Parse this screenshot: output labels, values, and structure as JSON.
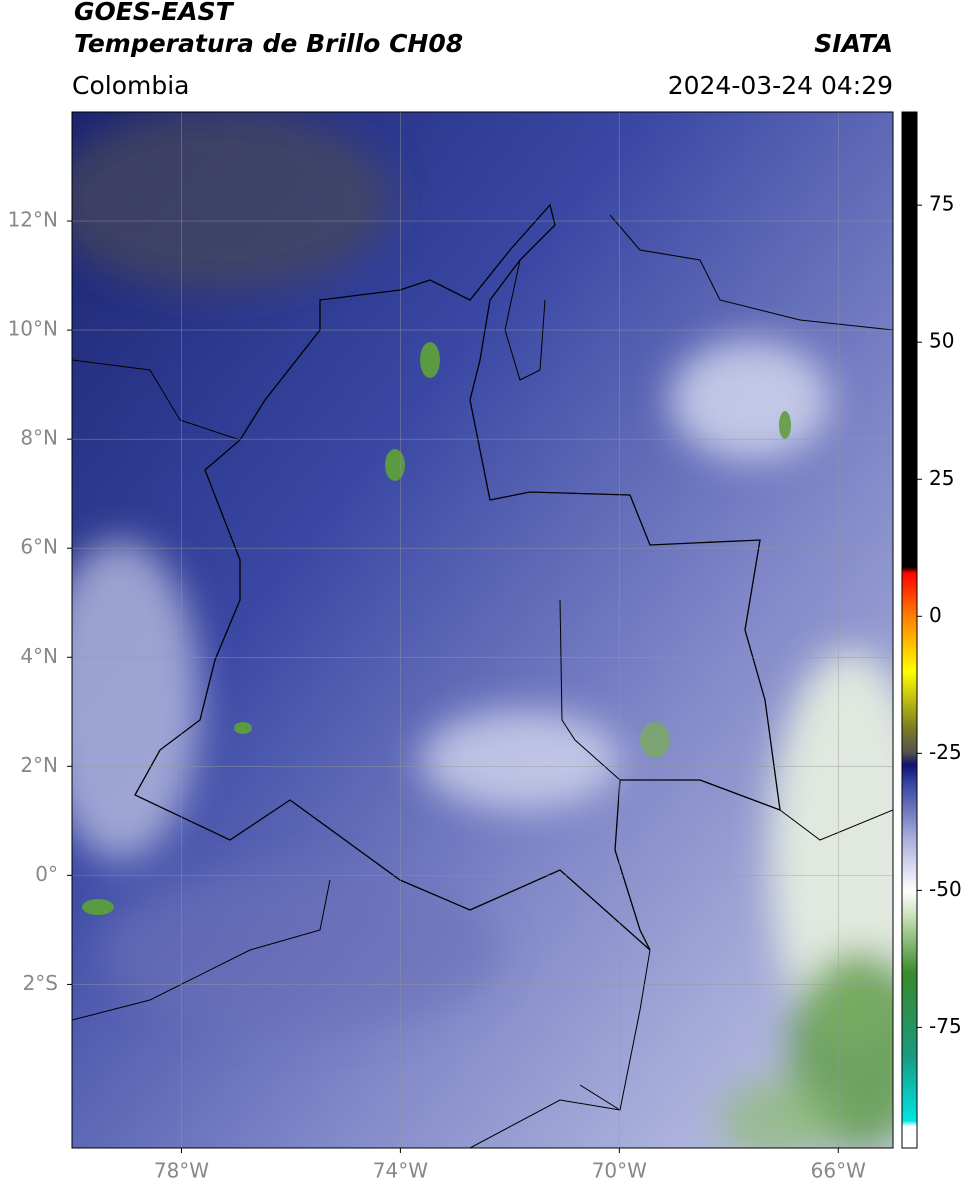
{
  "header": {
    "title": "GOES-EAST",
    "subtitle": "Temperatura de Brillo CH08",
    "source": "SIATA",
    "region": "Colombia",
    "datetime": "2024-03-24 04:29"
  },
  "map": {
    "lonlim": [
      -80,
      -65
    ],
    "latlim": [
      -5,
      14
    ],
    "lat_ticks": [
      {
        "value": 12,
        "label": "12°N"
      },
      {
        "value": 10,
        "label": "10°N"
      },
      {
        "value": 8,
        "label": "8°N"
      },
      {
        "value": 6,
        "label": "6°N"
      },
      {
        "value": 4,
        "label": "4°N"
      },
      {
        "value": 2,
        "label": "2°N"
      },
      {
        "value": 0,
        "label": "0°"
      },
      {
        "value": -2,
        "label": "2°S"
      }
    ],
    "lon_ticks": [
      {
        "value": -78,
        "label": "78°W"
      },
      {
        "value": -74,
        "label": "74°W"
      },
      {
        "value": -70,
        "label": "70°W"
      },
      {
        "value": -66,
        "label": "66°W"
      }
    ]
  },
  "colorbar": {
    "lim": [
      -97,
      92
    ],
    "ticks": [
      75,
      50,
      25,
      0,
      -25,
      -50,
      -75
    ],
    "colormap": [
      {
        "value": -97,
        "color": "#ffffff"
      },
      {
        "value": -93,
        "color": "#ffffff"
      },
      {
        "value": -92,
        "color": "#00e5e5"
      },
      {
        "value": -80,
        "color": "#1a9a80"
      },
      {
        "value": -65,
        "color": "#3a8a2a"
      },
      {
        "value": -55,
        "color": "#c4e0b4"
      },
      {
        "value": -50,
        "color": "#ffffff"
      },
      {
        "value": -40,
        "color": "#a4aad8"
      },
      {
        "value": -30,
        "color": "#3040a0"
      },
      {
        "value": -27,
        "color": "#101070"
      },
      {
        "value": -25,
        "color": "#505050"
      },
      {
        "value": -20,
        "color": "#808020"
      },
      {
        "value": -10,
        "color": "#ffff00"
      },
      {
        "value": 0,
        "color": "#ff8000"
      },
      {
        "value": 8,
        "color": "#ff0000"
      },
      {
        "value": 9,
        "color": "#000000"
      },
      {
        "value": 92,
        "color": "#000000"
      }
    ]
  }
}
